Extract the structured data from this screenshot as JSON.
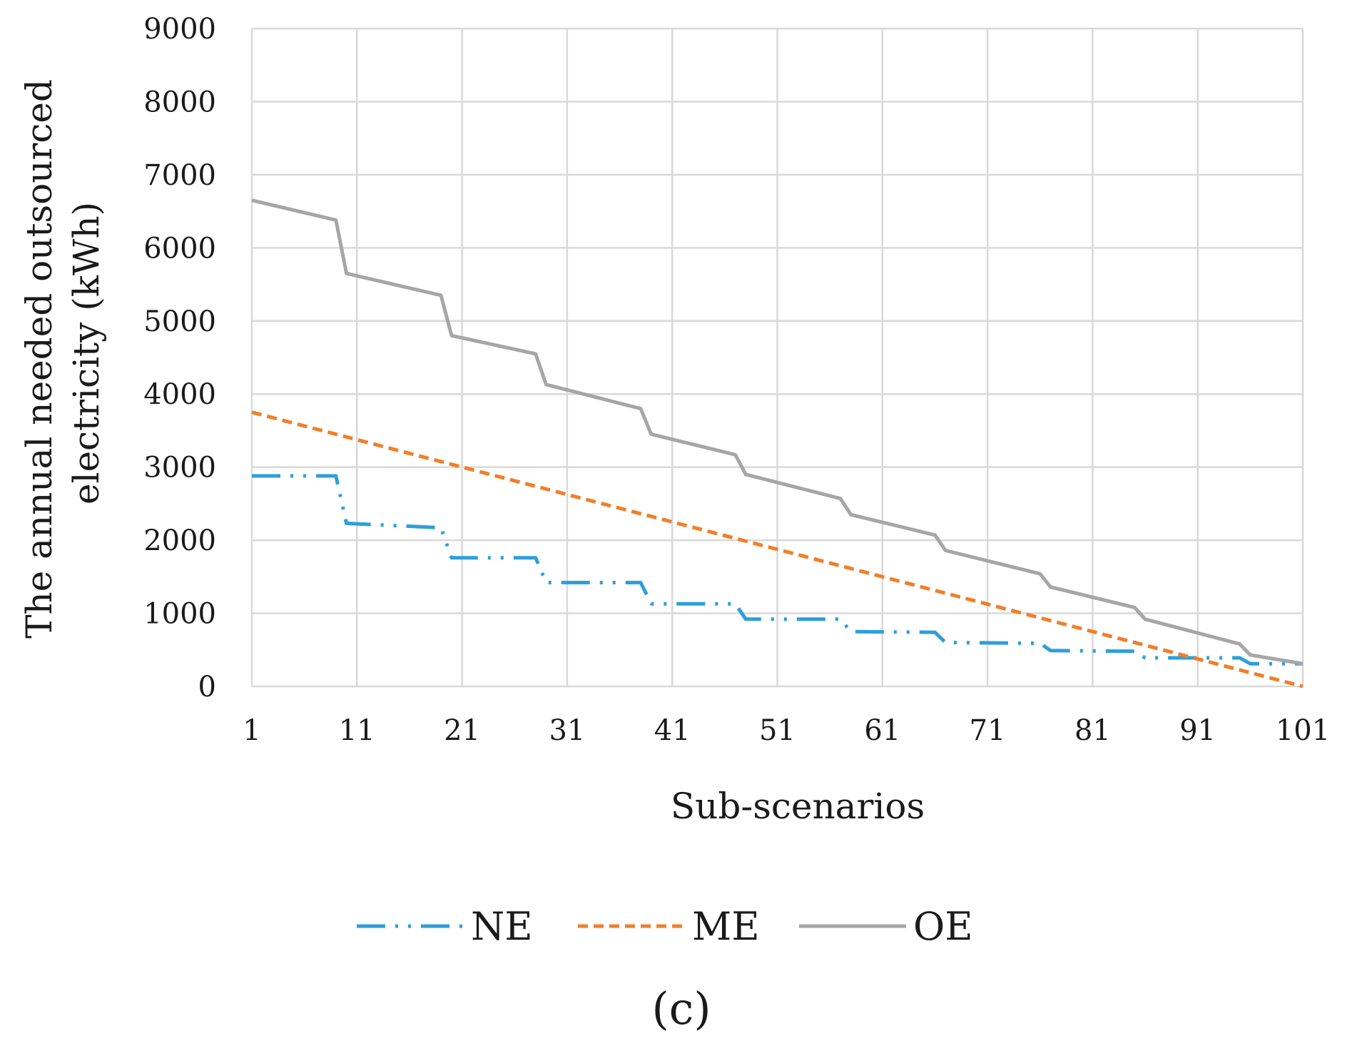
{
  "chart_data": {
    "type": "line",
    "title": "",
    "panel_label": "(c)",
    "xlabel": "Sub-scenarios",
    "ylabel_line1": "The annual needed outsourced",
    "ylabel_line2": "electricity (kWh)",
    "xlim": [
      1,
      101
    ],
    "ylim": [
      0,
      9000
    ],
    "x_ticks": [
      1,
      11,
      21,
      31,
      41,
      51,
      61,
      71,
      81,
      91,
      101
    ],
    "y_ticks": [
      0,
      1000,
      2000,
      3000,
      4000,
      5000,
      6000,
      7000,
      8000,
      9000
    ],
    "grid": true,
    "legend_position": "bottom",
    "series": [
      {
        "name": "NE",
        "color": "#2e9fd9",
        "style": "dash-dot-dot",
        "points": [
          [
            1,
            2880
          ],
          [
            9,
            2880
          ],
          [
            10,
            2230
          ],
          [
            19,
            2170
          ],
          [
            20,
            1760
          ],
          [
            28,
            1760
          ],
          [
            29,
            1420
          ],
          [
            38,
            1420
          ],
          [
            39,
            1130
          ],
          [
            47,
            1130
          ],
          [
            48,
            920
          ],
          [
            57,
            920
          ],
          [
            58,
            750
          ],
          [
            66,
            740
          ],
          [
            67,
            600
          ],
          [
            76,
            590
          ],
          [
            77,
            490
          ],
          [
            85,
            480
          ],
          [
            86,
            390
          ],
          [
            95,
            390
          ],
          [
            96,
            310
          ],
          [
            101,
            310
          ]
        ]
      },
      {
        "name": "ME",
        "color": "#f07f2a",
        "style": "dashed",
        "points": [
          [
            1,
            3750
          ],
          [
            101,
            0
          ]
        ]
      },
      {
        "name": "OE",
        "color": "#a6a6a6",
        "style": "solid",
        "points": [
          [
            1,
            6650
          ],
          [
            9,
            6380
          ],
          [
            10,
            5650
          ],
          [
            19,
            5350
          ],
          [
            20,
            4800
          ],
          [
            28,
            4550
          ],
          [
            29,
            4130
          ],
          [
            38,
            3800
          ],
          [
            39,
            3450
          ],
          [
            47,
            3170
          ],
          [
            48,
            2900
          ],
          [
            57,
            2570
          ],
          [
            58,
            2350
          ],
          [
            66,
            2070
          ],
          [
            67,
            1860
          ],
          [
            76,
            1540
          ],
          [
            77,
            1360
          ],
          [
            85,
            1080
          ],
          [
            86,
            920
          ],
          [
            95,
            580
          ],
          [
            96,
            430
          ],
          [
            101,
            310
          ]
        ]
      }
    ]
  }
}
